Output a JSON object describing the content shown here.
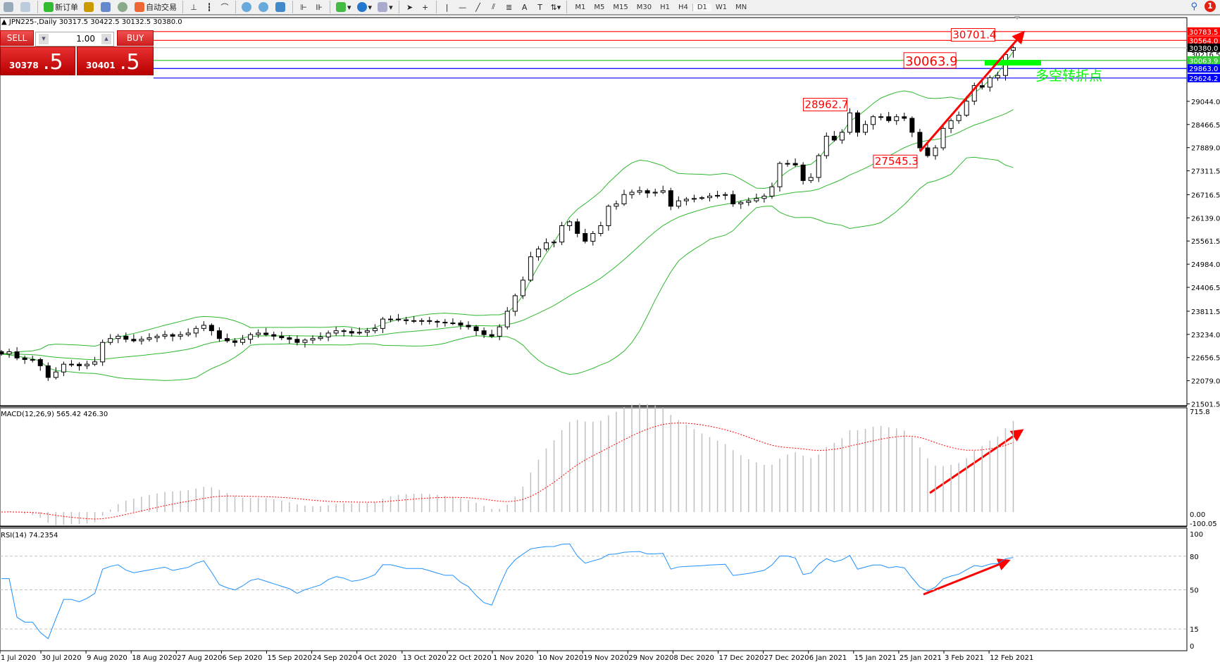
{
  "toolbar": {
    "new_order": "新订单",
    "auto_trading": "自动交易",
    "timeframes": [
      "M1",
      "M5",
      "M15",
      "M30",
      "H1",
      "H4",
      "D1",
      "W1",
      "MN"
    ],
    "active_timeframe": "D1",
    "notification_count": "1"
  },
  "header": {
    "symbol_info": "JPN225-,Daily  30317.5 30422.5 30132.5 30380.0"
  },
  "trade_panel": {
    "sell_label": "SELL",
    "buy_label": "BUY",
    "lot": "1.00",
    "sell_price_main": "30378",
    "sell_price_frac": ".5",
    "buy_price_main": "30401",
    "buy_price_frac": ".5"
  },
  "chart_data": {
    "type": "candlestick",
    "symbol": "JPN225-",
    "period": "Daily",
    "last_bar": {
      "open": 30317.5,
      "high": 30422.5,
      "low": 30132.5,
      "close": 30380.0
    },
    "closes": [
      22744,
      22801,
      22646,
      22607,
      22607,
      22452,
      22161,
      22297,
      22491,
      22491,
      22452,
      22491,
      22549,
      23034,
      23131,
      23189,
      23112,
      23073,
      23112,
      23150,
      23189,
      23228,
      23189,
      23228,
      23267,
      23383,
      23461,
      23325,
      23131,
      23073,
      23034,
      23112,
      23228,
      23267,
      23228,
      23189,
      23150,
      23112,
      23034,
      23092,
      23131,
      23170,
      23267,
      23325,
      23306,
      23267,
      23286,
      23325,
      23383,
      23616,
      23616,
      23597,
      23577,
      23577,
      23577,
      23558,
      23538,
      23519,
      23519,
      23461,
      23422,
      23325,
      23228,
      23189,
      23422,
      23810,
      24198,
      24586,
      25168,
      25362,
      25517,
      25536,
      25944,
      26041,
      25750,
      25556,
      25750,
      25944,
      26429,
      26487,
      26720,
      26778,
      26817,
      26758,
      26778,
      26817,
      26429,
      26564,
      26603,
      26623,
      26642,
      26681,
      26700,
      26720,
      26487,
      26526,
      26564,
      26623,
      26681,
      26914,
      27496,
      27496,
      27457,
      27069,
      27146,
      27690,
      28175,
      28078,
      28272,
      28757,
      28272,
      28466,
      28660,
      28660,
      28563,
      28660,
      28621,
      28272,
      27884,
      27690,
      27884,
      28369,
      28563,
      28698,
      29048,
      29436,
      29397,
      29630,
      29688,
      30212,
      30380
    ],
    "price_axis": {
      "min": 21501.5,
      "max": 30783.5,
      "ticks": [
        "29044.0",
        "28466.5",
        "27889.0",
        "27311.5",
        "26716.5",
        "26139.0",
        "25561.5",
        "24984.0",
        "24406.5",
        "23811.5",
        "23234.0",
        "22656.5",
        "22079.0",
        "21501.5"
      ],
      "top_partial": "30216.5"
    },
    "date_labels": [
      "1 Jul 2020",
      "30 Jul 2020",
      "9 Aug 2020",
      "18 Aug 2020",
      "27 Aug 2020",
      "6 Sep 2020",
      "15 Sep 2020",
      "24 Sep 2020",
      "4 Oct 2020",
      "13 Oct 2020",
      "22 Oct 2020",
      "1 Nov 2020",
      "10 Nov 2020",
      "19 Nov 2020",
      "29 Nov 2020",
      "8 Dec 2020",
      "17 Dec 2020",
      "27 Dec 2020",
      "6 Jan 2021",
      "15 Jan 2021",
      "25 Jan 2021",
      "3 Feb 2021",
      "12 Feb 2021"
    ],
    "indicators": {
      "bollinger": {
        "period": 20,
        "deviation": 2,
        "color": "#2eb82e"
      },
      "macd": {
        "label": "MACD(12,26,9) 565.42 426.30",
        "axis": [
          "715.8",
          "0.00",
          "-100.05"
        ],
        "max": 715.8,
        "min": -100.05,
        "hist_color": "#c0c0c0",
        "signal_color": "#ff0000"
      },
      "rsi": {
        "label": "RSI(14) 74.2354",
        "axis": [
          "100",
          "80",
          "50",
          "15",
          "0"
        ],
        "levels": [
          80,
          50,
          15
        ],
        "color": "#1e90ff"
      }
    },
    "hlines": [
      {
        "price": 30783.5,
        "label": "30783.5",
        "color": "#ff0000"
      },
      {
        "price": 30564.0,
        "label": "30564.0",
        "color": "#ff0000"
      },
      {
        "price": 30380.0,
        "label": "30380.0",
        "color": "#000000",
        "line": "#c0c0c0"
      },
      {
        "price": 30063.9,
        "label": "30063.9",
        "color": "#33cc33"
      },
      {
        "price": 29863.0,
        "label": "29863.0",
        "color": "#0000ff"
      },
      {
        "price": 29624.2,
        "label": "29624.2",
        "color": "#0000ff"
      }
    ],
    "annotations": [
      {
        "text": "30701.4",
        "bar": 128,
        "price": 30701.4
      },
      {
        "text": "30063.9",
        "bar": 123,
        "price": 30063.9,
        "large": true
      },
      {
        "text": "28962.7",
        "bar": 109,
        "price": 28962.7
      },
      {
        "text": "27545.3",
        "bar": 118,
        "price": 27545.3
      }
    ],
    "zone_label": "多空转折点",
    "zone_color": "#00ff00"
  }
}
